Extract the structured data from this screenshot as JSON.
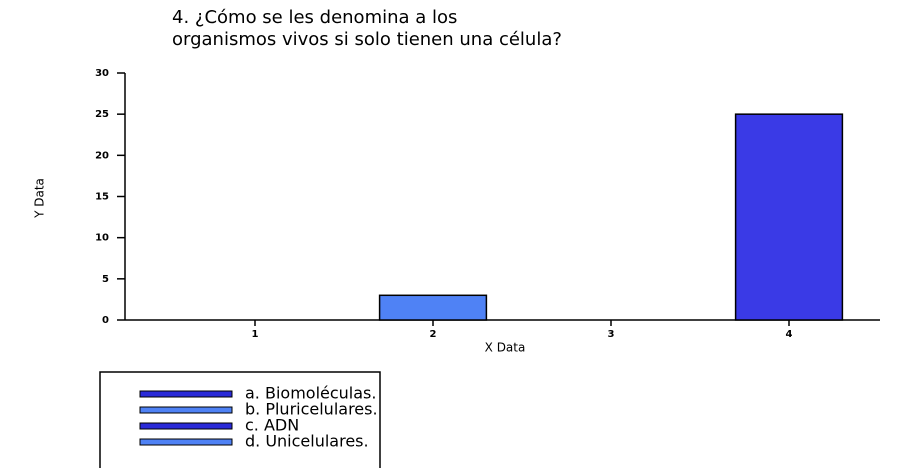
{
  "chart_data": {
    "type": "bar",
    "title": [
      "4. ¿Cómo se les denomina a los",
      "organismos vivos si solo tienen una célula?"
    ],
    "x_label": "X Data",
    "y_label": "Y Data",
    "categories": [
      "1",
      "2",
      "3",
      "4"
    ],
    "values": [
      0,
      3,
      0,
      25
    ],
    "colors": [
      "#3a3ae6",
      "#4f82f5",
      "#3a3ae6",
      "#3a3ae6"
    ],
    "ylim": [
      0,
      30
    ],
    "yticks": [
      0,
      5,
      10,
      15,
      20,
      25,
      30
    ],
    "legend": [
      {
        "label": "a. Biomoléculas.",
        "color": "#2a2ad8"
      },
      {
        "label": "b. Pluricelulares.",
        "color": "#4f82f5"
      },
      {
        "label": "c. ADN",
        "color": "#2a2ad8"
      },
      {
        "label": "d. Unicelulares.",
        "color": "#4f82f5"
      }
    ]
  }
}
